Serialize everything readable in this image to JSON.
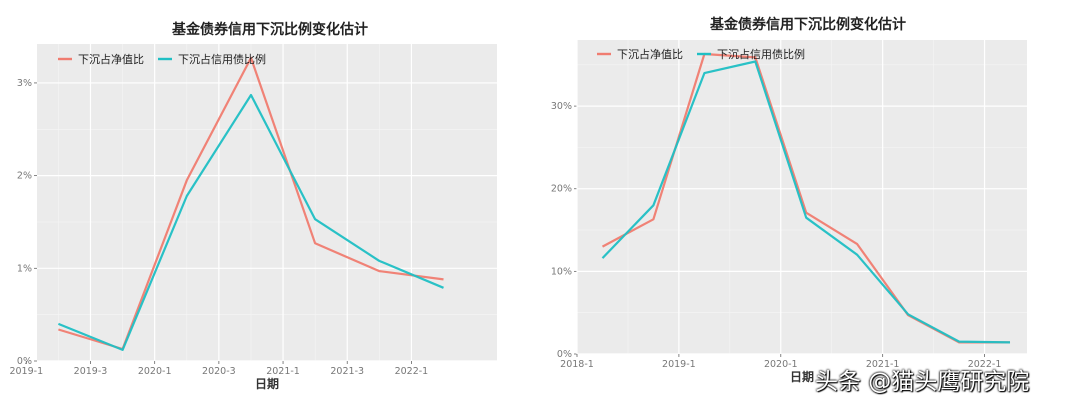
{
  "chart_data": [
    {
      "type": "line",
      "title": "基金债券信用下沉比例变化估计",
      "xlabel": "日期",
      "ylabel": "",
      "ylim": [
        0,
        3.42
      ],
      "xlim": [
        "2019-02",
        "2022-09"
      ],
      "yticks": [
        {
          "v": 0,
          "label": "0%"
        },
        {
          "v": 1,
          "label": "1%"
        },
        {
          "v": 2,
          "label": "2%"
        },
        {
          "v": 3,
          "label": "3%"
        }
      ],
      "xticks": [
        {
          "at": "2019-01",
          "label": "2019-1"
        },
        {
          "at": "2019-07",
          "label": "2019-3"
        },
        {
          "at": "2020-01",
          "label": "2020-1"
        },
        {
          "at": "2020-07",
          "label": "2020-3"
        },
        {
          "at": "2021-01",
          "label": "2021-1"
        },
        {
          "at": "2021-07",
          "label": "2021-3"
        },
        {
          "at": "2022-01",
          "label": "2022-1"
        }
      ],
      "x": [
        "2019-04",
        "2019-10",
        "2020-04",
        "2020-10",
        "2021-04",
        "2021-10",
        "2022-04"
      ],
      "legend": "top-left",
      "grid": true,
      "series": [
        {
          "name": "下沉占净值比",
          "color": "#F07C70",
          "values": [
            0.34,
            0.13,
            1.95,
            3.27,
            1.27,
            0.97,
            0.88
          ]
        },
        {
          "name": "下沉占信用债比例",
          "color": "#1FBFC4",
          "values": [
            0.4,
            0.12,
            1.78,
            2.87,
            1.53,
            1.08,
            0.79
          ]
        }
      ]
    },
    {
      "type": "line",
      "title": "基金债券信用下沉比例变化估计",
      "xlabel": "日期",
      "ylabel": "",
      "ylim": [
        0,
        38
      ],
      "xlim": [
        "2018-01",
        "2022-06"
      ],
      "yticks": [
        {
          "v": 0,
          "label": "0%"
        },
        {
          "v": 10,
          "label": "10%"
        },
        {
          "v": 20,
          "label": "20%"
        },
        {
          "v": 30,
          "label": "30%"
        }
      ],
      "xticks": [
        {
          "at": "2018-01",
          "label": "2018-1"
        },
        {
          "at": "2019-01",
          "label": "2019-1"
        },
        {
          "at": "2020-01",
          "label": "2020-1"
        },
        {
          "at": "2021-01",
          "label": "2021-1"
        },
        {
          "at": "2022-01",
          "label": "2022-1"
        }
      ],
      "x": [
        "2018-04",
        "2018-10",
        "2019-04",
        "2019-10",
        "2020-04",
        "2020-10",
        "2021-04",
        "2021-10",
        "2022-04"
      ],
      "legend": "top-left",
      "grid": true,
      "series": [
        {
          "name": "下沉占净值比",
          "color": "#F07C70",
          "values": [
            13.0,
            16.3,
            36.3,
            35.9,
            17.1,
            13.3,
            4.7,
            1.4,
            1.4
          ]
        },
        {
          "name": "下沉占信用债比例",
          "color": "#1FBFC4",
          "values": [
            11.6,
            18.0,
            34.0,
            35.4,
            16.5,
            12.0,
            4.8,
            1.5,
            1.4
          ]
        }
      ]
    }
  ],
  "watermark": "头条 @猫头鹰研究院"
}
